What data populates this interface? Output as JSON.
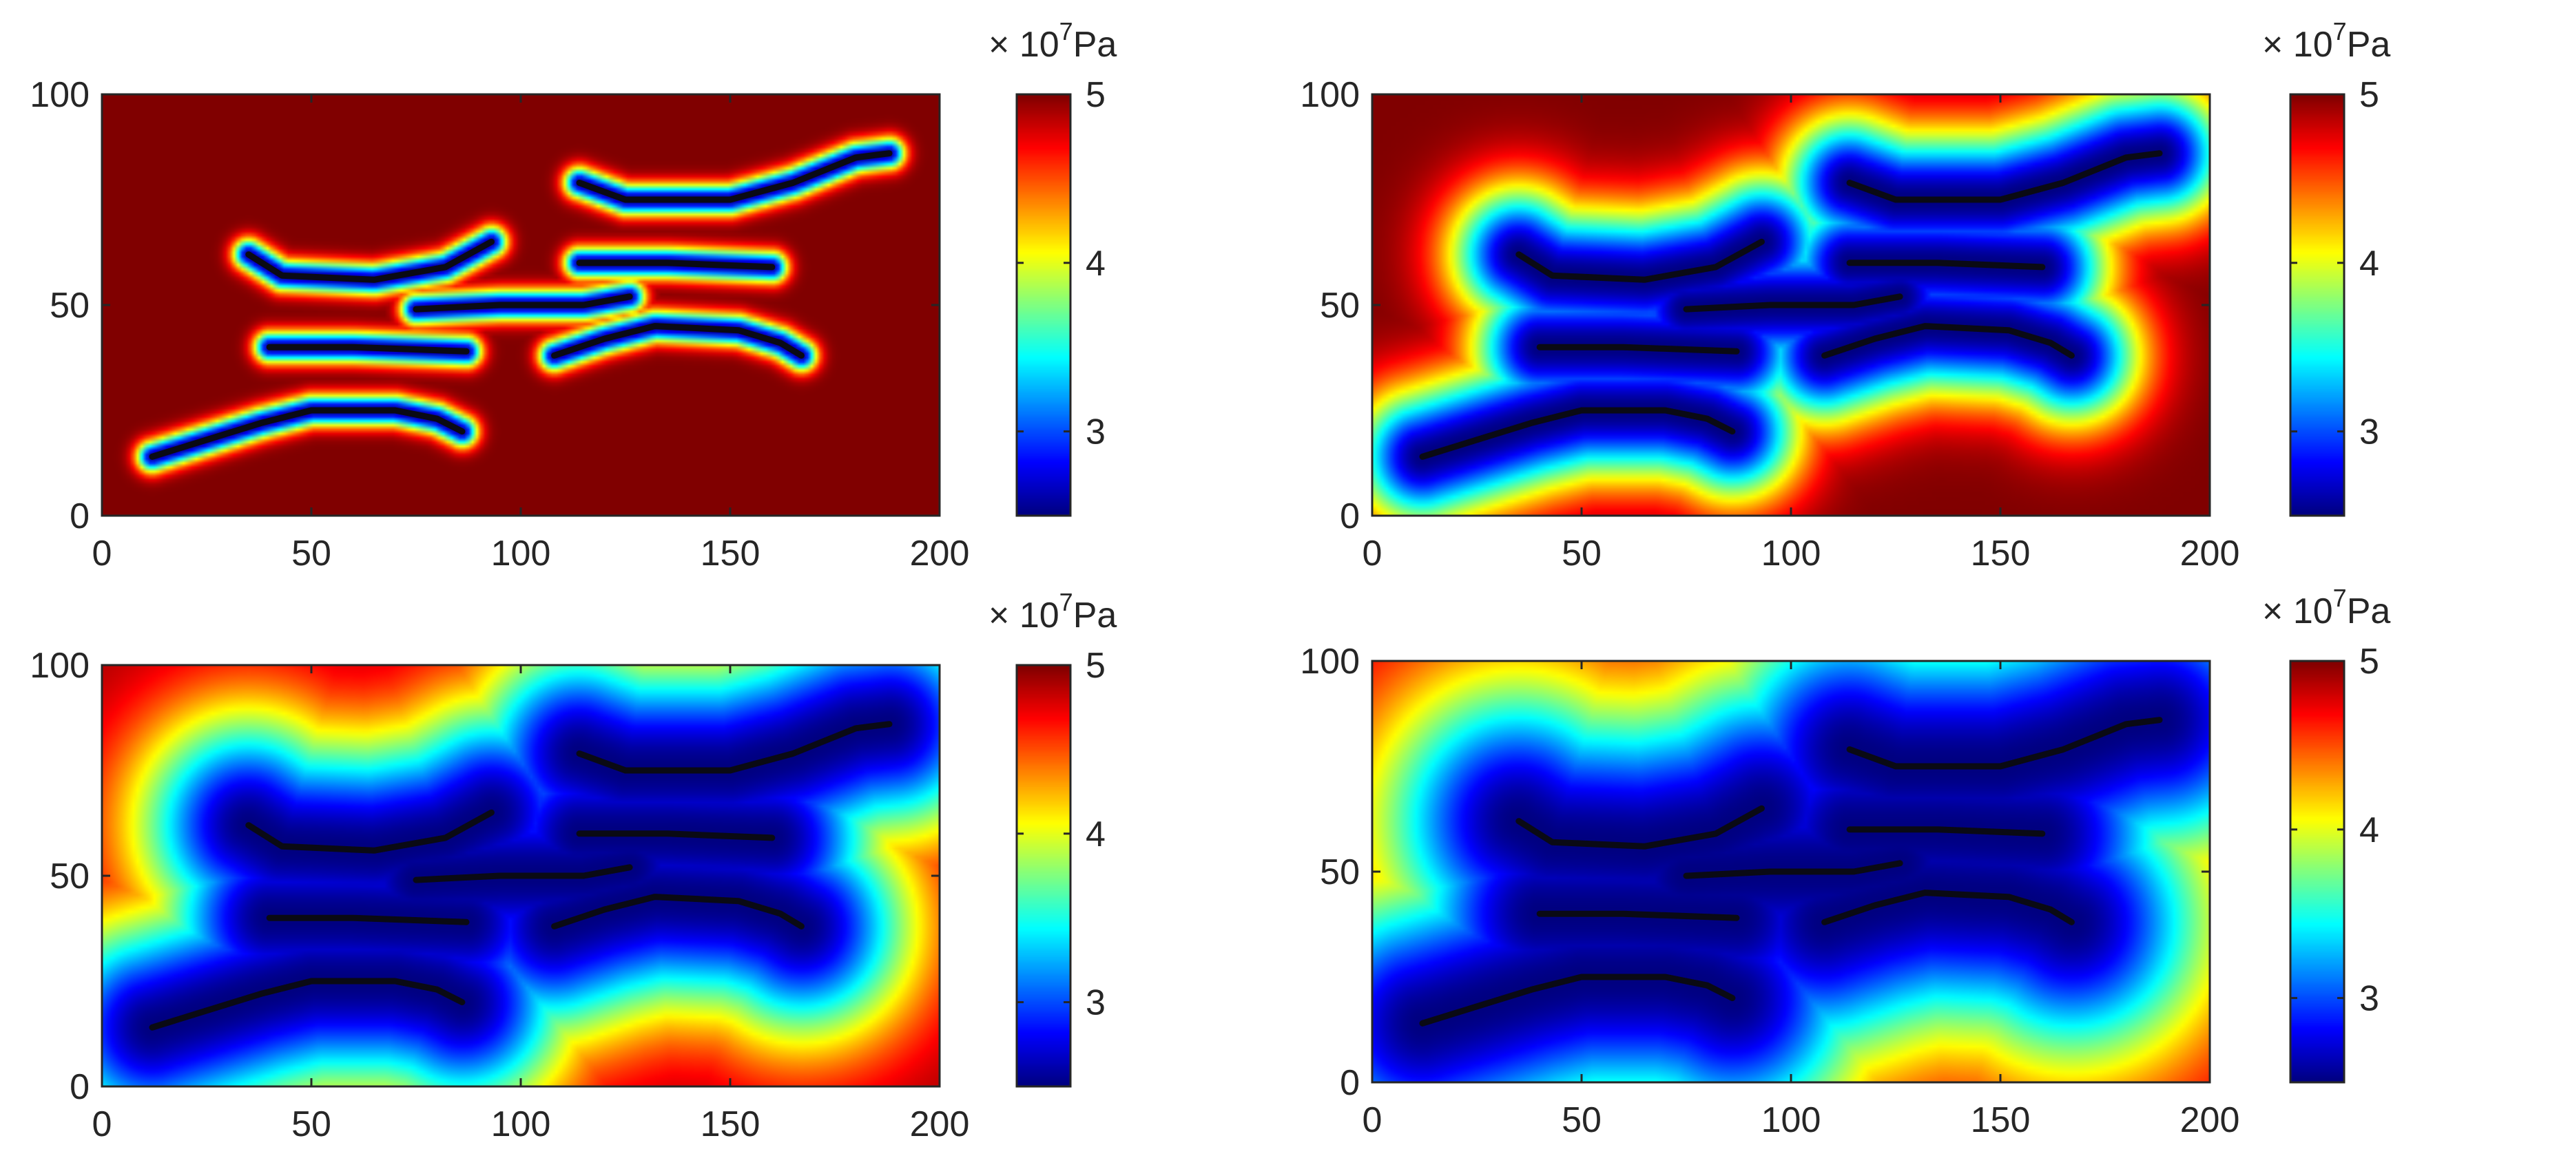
{
  "chart_data": [
    {
      "type": "heatmap",
      "panel": "top-left",
      "x_range": [
        0,
        200
      ],
      "y_range": [
        0,
        100
      ],
      "x_ticks": [
        0,
        50,
        100,
        150,
        200
      ],
      "y_ticks": [
        0,
        50,
        100
      ],
      "colorbar": {
        "range": [
          2.5,
          5
        ],
        "ticks": [
          3,
          4,
          5
        ],
        "multiplier_base": "× 10",
        "multiplier_exp": "7",
        "unit": "Pa",
        "colormap": "jet"
      },
      "field_spread": 4,
      "background_level": 1.0
    },
    {
      "type": "heatmap",
      "panel": "top-right",
      "x_range": [
        0,
        200
      ],
      "y_range": [
        0,
        100
      ],
      "x_ticks": [
        0,
        50,
        100,
        150,
        200
      ],
      "y_ticks": [
        0,
        50,
        100
      ],
      "colorbar": {
        "range": [
          2.5,
          5
        ],
        "ticks": [
          3,
          4,
          5
        ],
        "multiplier_base": "× 10",
        "multiplier_exp": "7",
        "unit": "Pa",
        "colormap": "jet"
      },
      "field_spread": 18,
      "background_level": 1.0
    },
    {
      "type": "heatmap",
      "panel": "bottom-left",
      "x_range": [
        0,
        200
      ],
      "y_range": [
        0,
        100
      ],
      "x_ticks": [
        0,
        50,
        100,
        150,
        200
      ],
      "y_ticks": [
        0,
        50,
        100
      ],
      "colorbar": {
        "range": [
          2.5,
          5
        ],
        "ticks": [
          3,
          4,
          5
        ],
        "multiplier_base": "× 10",
        "multiplier_exp": "7",
        "unit": "Pa",
        "colormap": "jet"
      },
      "field_spread": 30,
      "background_level": 0.97
    },
    {
      "type": "heatmap",
      "panel": "bottom-right",
      "x_range": [
        0,
        200
      ],
      "y_range": [
        0,
        100
      ],
      "x_ticks": [
        0,
        50,
        100,
        150,
        200
      ],
      "y_ticks": [
        0,
        50,
        100
      ],
      "colorbar": {
        "range": [
          2.5,
          5
        ],
        "ticks": [
          3,
          4,
          5
        ],
        "multiplier_base": "× 10",
        "multiplier_exp": "7",
        "unit": "Pa",
        "colormap": "jet"
      },
      "field_spread": 38,
      "background_level": 0.95
    }
  ],
  "fractures": [
    [
      [
        12,
        14
      ],
      [
        25,
        18
      ],
      [
        38,
        22
      ],
      [
        50,
        25
      ],
      [
        70,
        25
      ],
      [
        80,
        23
      ],
      [
        86,
        20
      ]
    ],
    [
      [
        40,
        40
      ],
      [
        60,
        40
      ],
      [
        87,
        39
      ]
    ],
    [
      [
        35,
        62
      ],
      [
        43,
        57
      ],
      [
        65,
        56
      ],
      [
        82,
        59
      ],
      [
        93,
        65
      ]
    ],
    [
      [
        75,
        49
      ],
      [
        95,
        50
      ],
      [
        115,
        50
      ],
      [
        126,
        52
      ]
    ],
    [
      [
        108,
        38
      ],
      [
        120,
        42
      ],
      [
        132,
        45
      ],
      [
        152,
        44
      ],
      [
        162,
        41
      ],
      [
        167,
        38
      ]
    ],
    [
      [
        114,
        60
      ],
      [
        135,
        60
      ],
      [
        160,
        59
      ]
    ],
    [
      [
        114,
        79
      ],
      [
        125,
        75
      ],
      [
        150,
        75
      ],
      [
        165,
        79
      ],
      [
        180,
        85
      ],
      [
        188,
        86
      ]
    ]
  ]
}
